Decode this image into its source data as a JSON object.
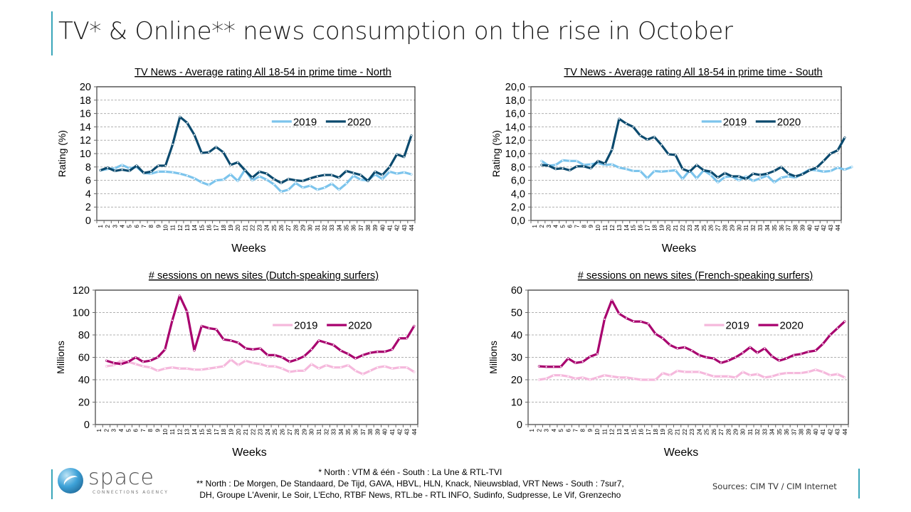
{
  "page": {
    "title": "TV* & Online** news consumption on the rise in October"
  },
  "footer": {
    "logo_word": "space",
    "logo_sub": "CONNECTIONS AGENCY",
    "footnote_1": "* North  : VTM & één - South : La Une & RTL-TVI",
    "footnote_2": "** North  : De Morgen, De Standaard, De Tijd, GAVA, HBVL, HLN, Knack, Nieuwsblad, VRT News - South : 7sur7,",
    "footnote_3": "DH, Groupe L'Avenir,  Le Soir, L'Echo, RTBF News, RTL.be - RTL INFO, Sudinfo, Sudpresse, Le Vif, Grenzecho",
    "sources": "Sources: CIM TV / CIM Internet"
  },
  "colors": {
    "tv_2019": "#7cc4ec",
    "tv_2020": "#0b4a6e",
    "web_2019": "#f5b8dc",
    "web_2020": "#a8006e",
    "accent": "#3aa6b9"
  },
  "chart_data": [
    {
      "id": "north",
      "type": "line",
      "title": "TV News  - Average rating All 18-54 in prime time - North",
      "xlabel": "Weeks",
      "ylabel": "Rating  (%)",
      "ylim": [
        0,
        20
      ],
      "yticks": [
        "0",
        "2",
        "4",
        "6",
        "8",
        "10",
        "12",
        "14",
        "16",
        "18",
        "20"
      ],
      "x_tick_labels": [
        "1",
        "2",
        "3",
        "4",
        "5",
        "6",
        "7",
        "8",
        "9",
        "10",
        "11",
        "12",
        "13",
        "14",
        "15",
        "16",
        "17",
        "18",
        "19",
        "20",
        "21",
        "22",
        "23",
        "24",
        "25",
        "26",
        "27",
        "28",
        "29",
        "30",
        "31",
        "32",
        "33",
        "34",
        "35",
        "36",
        "37",
        "38",
        "39",
        "40",
        "41",
        "42",
        "43",
        "44"
      ],
      "x_offset": 0,
      "grid": true,
      "legend": "top-right",
      "series": [
        {
          "name": "2019",
          "color_key": "tv_2019",
          "start_week": 1,
          "values": [
            7.5,
            7.7,
            7.8,
            8.3,
            7.8,
            8.0,
            7.1,
            7.0,
            7.3,
            7.3,
            7.2,
            7.0,
            6.7,
            6.3,
            5.7,
            5.3,
            6.0,
            6.1,
            6.9,
            5.9,
            7.6,
            6.0,
            6.6,
            6.1,
            5.4,
            4.3,
            4.6,
            5.6,
            4.9,
            5.2,
            4.6,
            4.9,
            5.5,
            4.6,
            5.5,
            6.7,
            6.1,
            6.0,
            6.9,
            6.2,
            7.3,
            7.0,
            7.2,
            6.9
          ]
        },
        {
          "name": "2020",
          "color_key": "tv_2020",
          "start_week": 1,
          "values": [
            7.5,
            7.9,
            7.4,
            7.6,
            7.4,
            8.2,
            7.1,
            7.3,
            8.2,
            8.2,
            11.4,
            15.5,
            14.6,
            12.8,
            10.1,
            10.2,
            11.0,
            10.2,
            8.3,
            8.7,
            7.5,
            6.4,
            7.3,
            7.0,
            6.2,
            5.6,
            6.2,
            6.0,
            5.9,
            6.3,
            6.6,
            6.8,
            6.8,
            6.4,
            7.4,
            7.1,
            6.8,
            5.9,
            7.3,
            6.8,
            8.0,
            9.9,
            9.5,
            12.7
          ]
        }
      ]
    },
    {
      "id": "south",
      "type": "line",
      "title": "TV News  - Average rating All 18-54 in prime time - South",
      "xlabel": "Weeks",
      "ylabel": "Rating  (%)",
      "ylim": [
        0,
        20
      ],
      "yticks": [
        "0,0",
        "2,0",
        "4,0",
        "6,0",
        "8,0",
        "10,0",
        "12,0",
        "14,0",
        "16,0",
        "18,0",
        "20,0"
      ],
      "x_tick_labels": [
        "1",
        "2",
        "3",
        "4",
        "5",
        "6",
        "7",
        "8",
        "9",
        "10",
        "11",
        "12",
        "13",
        "14",
        "15",
        "16",
        "17",
        "18",
        "19",
        "20",
        "21",
        "22",
        "23",
        "24",
        "25",
        "26",
        "27",
        "28",
        "29",
        "30",
        "31",
        "32",
        "33",
        "34",
        "35",
        "36",
        "37",
        "38",
        "39",
        "40",
        "41",
        "42",
        "43",
        "44"
      ],
      "grid": true,
      "legend": "top-right",
      "series": [
        {
          "name": "2019",
          "color_key": "tv_2019",
          "start_week": 2,
          "values": [
            8.9,
            8.2,
            8.3,
            9.0,
            8.9,
            8.9,
            8.3,
            8.4,
            8.6,
            8.3,
            8.4,
            7.9,
            7.7,
            7.4,
            7.4,
            6.3,
            7.4,
            7.3,
            7.4,
            7.5,
            6.2,
            7.5,
            6.3,
            7.5,
            6.8,
            5.7,
            6.5,
            6.6,
            6.0,
            6.6,
            5.9,
            6.3,
            6.7,
            5.7,
            6.4,
            6.6,
            6.4,
            7.0,
            7.6,
            7.5,
            7.3,
            7.4,
            7.9,
            7.6,
            8.0
          ]
        },
        {
          "name": "2020",
          "color_key": "tv_2020",
          "start_week": 2,
          "values": [
            8.3,
            8.2,
            7.7,
            7.8,
            7.5,
            8.1,
            8.1,
            7.8,
            8.9,
            8.5,
            10.6,
            15.2,
            14.5,
            14.0,
            12.7,
            12.1,
            12.5,
            11.3,
            9.9,
            9.8,
            7.7,
            7.3,
            8.3,
            7.5,
            7.3,
            6.4,
            7.1,
            6.6,
            6.6,
            6.2,
            7.0,
            6.8,
            7.0,
            7.4,
            8.0,
            7.0,
            6.6,
            6.9,
            7.5,
            7.9,
            8.9,
            10.0,
            10.5,
            12.4
          ]
        }
      ]
    },
    {
      "id": "dutch",
      "type": "line",
      "title": "# sessions on news sites (Dutch-speaking surfers)",
      "xlabel": "Weeks",
      "ylabel": "Millions",
      "ylim": [
        0,
        120
      ],
      "yticks": [
        "0",
        "20",
        "40",
        "60",
        "80",
        "100",
        "120"
      ],
      "x_tick_labels": [
        "1",
        "2",
        "3",
        "4",
        "5",
        "6",
        "7",
        "8",
        "9",
        "10",
        "11",
        "12",
        "13",
        "14",
        "15",
        "16",
        "17",
        "18",
        "19",
        "20",
        "21",
        "22",
        "23",
        "24",
        "25",
        "26",
        "27",
        "28",
        "29",
        "30",
        "31",
        "32",
        "33",
        "34",
        "35",
        "36",
        "37",
        "38",
        "39",
        "40",
        "41",
        "42",
        "43",
        "44"
      ],
      "grid": true,
      "legend": "top-right",
      "series": [
        {
          "name": "2019",
          "color_key": "web_2019",
          "start_week": 2,
          "values": [
            52,
            53,
            57,
            56,
            54,
            52,
            51,
            48,
            50,
            51,
            50,
            50,
            49,
            49,
            50,
            51,
            52,
            58,
            53,
            57,
            55,
            54,
            52,
            52,
            50,
            47,
            48,
            48,
            54,
            50,
            53,
            51,
            51,
            53,
            48,
            45,
            48,
            51,
            52,
            50,
            51,
            51,
            47
          ]
        },
        {
          "name": "2020",
          "color_key": "web_2020",
          "start_week": 2,
          "values": [
            57,
            55,
            54,
            56,
            60,
            56,
            57,
            60,
            67,
            93,
            115,
            101,
            66,
            88,
            86,
            85,
            76,
            75,
            73,
            68,
            67,
            68,
            62,
            62,
            60,
            56,
            58,
            61,
            67,
            75,
            73,
            71,
            66,
            63,
            59,
            62,
            64,
            65,
            65,
            67,
            77,
            77,
            88
          ]
        }
      ]
    },
    {
      "id": "french",
      "type": "line",
      "title": "# sessions on news sites (French-speaking surfers)",
      "xlabel": "Weeks",
      "ylabel": "Millions",
      "ylim": [
        0,
        60
      ],
      "yticks": [
        "0",
        "10",
        "20",
        "30",
        "40",
        "50",
        "60"
      ],
      "x_tick_labels": [
        "1",
        "2",
        "3",
        "4",
        "5",
        "6",
        "7",
        "8",
        "9",
        "10",
        "11",
        "12",
        "13",
        "14",
        "15",
        "16",
        "17",
        "18",
        "19",
        "20",
        "21",
        "22",
        "23",
        "24",
        "25",
        "26",
        "27",
        "28",
        "29",
        "30",
        "31",
        "32",
        "33",
        "34",
        "35",
        "36",
        "37",
        "38",
        "39",
        "40",
        "41",
        "42",
        "43",
        "44"
      ],
      "grid": true,
      "legend": "top-right",
      "series": [
        {
          "name": "2019",
          "color_key": "web_2019",
          "start_week": 2,
          "values": [
            20,
            20.5,
            22,
            22,
            21.5,
            20.5,
            21,
            20,
            21,
            22,
            21.5,
            21,
            21,
            20.5,
            20,
            20,
            20,
            23,
            22,
            24,
            23.5,
            23.5,
            23.5,
            22.5,
            21.5,
            21.5,
            21.5,
            21,
            23.5,
            22,
            22.5,
            21,
            21.5,
            22.5,
            23,
            23,
            23,
            23.5,
            24.5,
            23.5,
            22,
            22.5,
            21
          ]
        },
        {
          "name": "2020",
          "color_key": "web_2020",
          "start_week": 2,
          "values": [
            26,
            25.8,
            25.8,
            25.8,
            29.5,
            27.5,
            28,
            30.3,
            31.5,
            47,
            55.5,
            49.5,
            47.5,
            46,
            46,
            45,
            40.5,
            38.5,
            35.5,
            34,
            34.5,
            33,
            31,
            30,
            29.5,
            27.5,
            28.5,
            30,
            32,
            34.5,
            32,
            34,
            30.5,
            28.5,
            29.5,
            31,
            31.5,
            32.5,
            33,
            36,
            40,
            43,
            46
          ]
        }
      ]
    }
  ]
}
